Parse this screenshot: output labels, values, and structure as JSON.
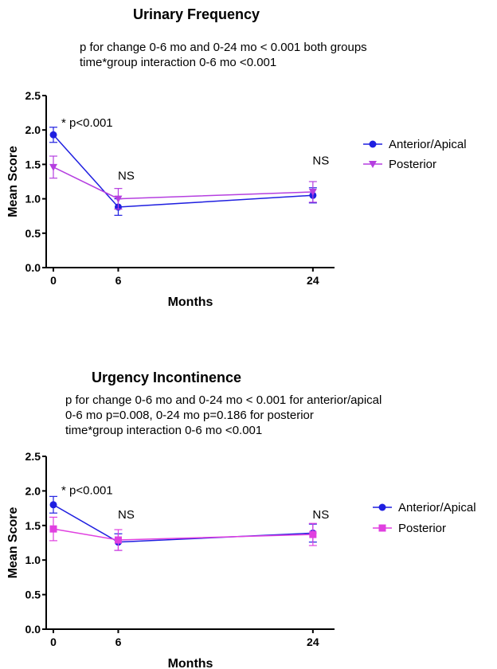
{
  "chart_data": [
    {
      "type": "line",
      "title": "Urinary Frequency",
      "notes": [
        "p for change 0-6 mo and 0-24 mo < 0.001 both groups",
        "time*group interaction 0-6 mo <0.001"
      ],
      "xlabel": "Months",
      "ylabel": "Mean Score",
      "x": [
        0,
        6,
        24
      ],
      "x_ticks": [
        "0",
        "6",
        "24"
      ],
      "xlim": [
        0,
        26
      ],
      "ylim": [
        0,
        2.5
      ],
      "y_ticks": [
        "0.0",
        "0.5",
        "1.0",
        "1.5",
        "2.0",
        "2.5"
      ],
      "series": [
        {
          "name": "Anterior/Apical",
          "color": "#1f1fe0",
          "marker": "circle",
          "values": [
            1.93,
            0.88,
            1.05
          ],
          "err": [
            0.11,
            0.12,
            0.11
          ]
        },
        {
          "name": "Posterior",
          "color": "#b53fe0",
          "marker": "triangle-down",
          "values": [
            1.46,
            1.0,
            1.1
          ],
          "err": [
            0.16,
            0.15,
            0.15
          ]
        }
      ],
      "annotations": [
        {
          "text": "* p<0.001",
          "x": 0,
          "y": 2.05
        },
        {
          "text": "NS",
          "x": 6,
          "y": 1.28
        },
        {
          "text": "NS",
          "x": 24,
          "y": 1.5
        }
      ],
      "legend": "right",
      "grid": false
    },
    {
      "type": "line",
      "title": "Urgency Incontinence",
      "notes": [
        "p for change 0-6 mo and 0-24 mo < 0.001 for anterior/apical",
        "0-6 mo p=0.008, 0-24 mo p=0.186 for posterior",
        "time*group interaction 0-6 mo <0.001"
      ],
      "xlabel": "Months",
      "ylabel": "Mean Score",
      "x": [
        0,
        6,
        24
      ],
      "x_ticks": [
        "0",
        "6",
        "24"
      ],
      "xlim": [
        0,
        26
      ],
      "ylim": [
        0,
        2.5
      ],
      "y_ticks": [
        "0.0",
        "0.5",
        "1.0",
        "1.5",
        "2.0",
        "2.5"
      ],
      "series": [
        {
          "name": "Anterior/Apical",
          "color": "#1f1fe0",
          "marker": "circle",
          "values": [
            1.8,
            1.26,
            1.39
          ],
          "err": [
            0.12,
            0.12,
            0.13
          ]
        },
        {
          "name": "Posterior",
          "color": "#e040e0",
          "marker": "square",
          "values": [
            1.45,
            1.29,
            1.37
          ],
          "err": [
            0.17,
            0.15,
            0.16
          ]
        }
      ],
      "annotations": [
        {
          "text": "* p<0.001",
          "x": 0,
          "y": 1.95
        },
        {
          "text": "NS",
          "x": 6,
          "y": 1.6
        },
        {
          "text": "NS",
          "x": 24,
          "y": 1.6
        }
      ],
      "legend": "right",
      "grid": false
    }
  ]
}
